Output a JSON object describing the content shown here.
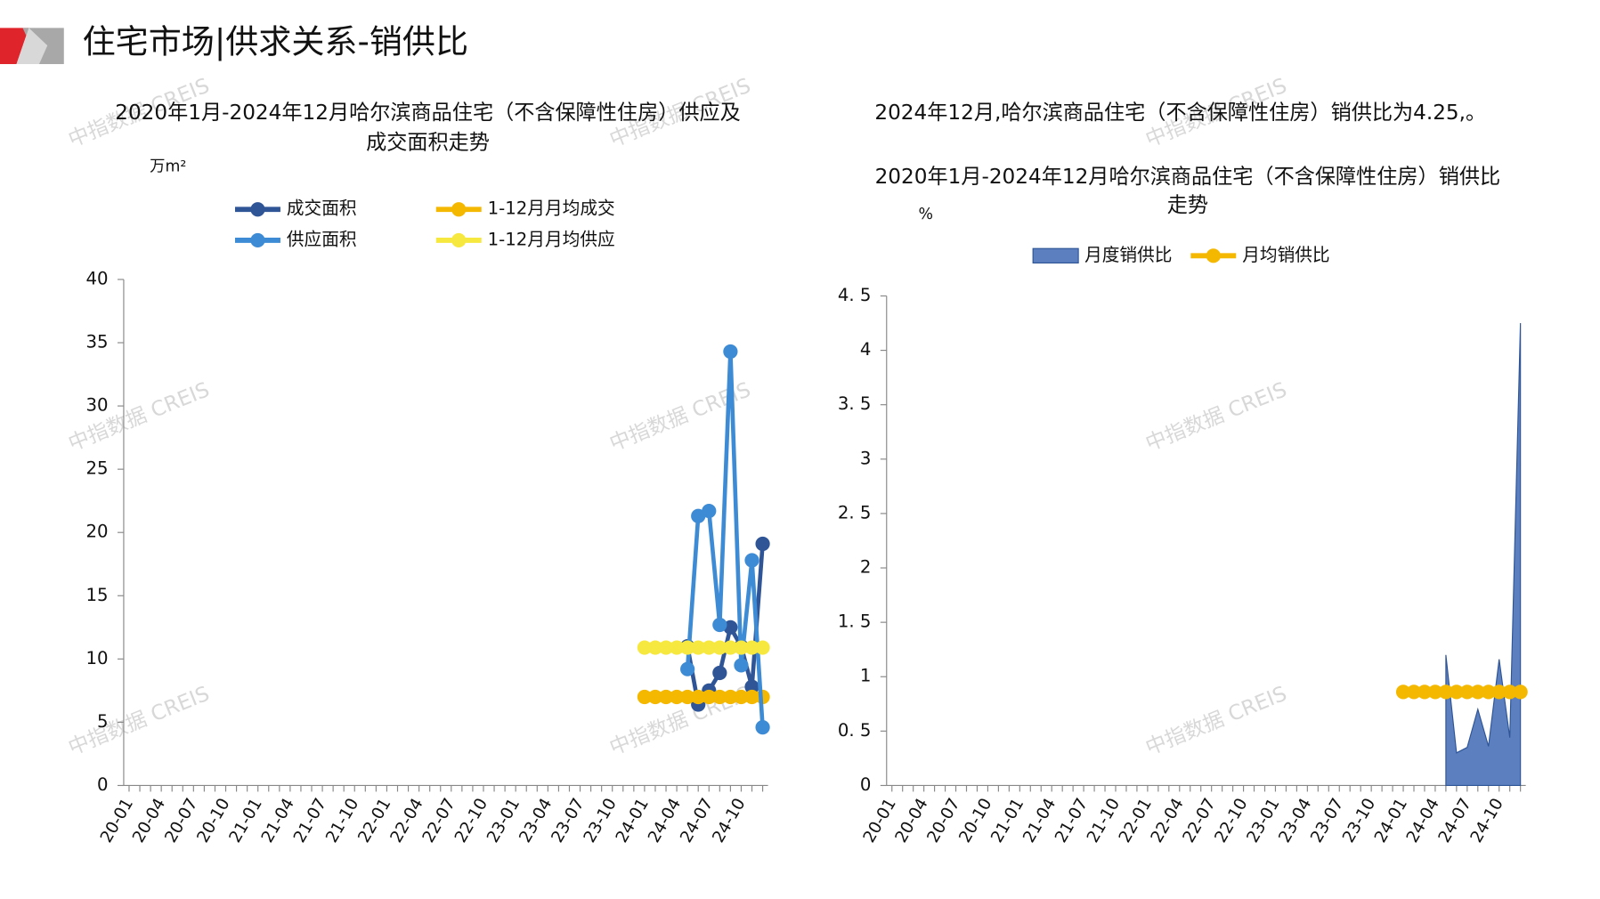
{
  "header": {
    "title": "住宅市场|供求关系-销供比"
  },
  "watermark": "中指数据 CREIS",
  "chart_data": [
    {
      "type": "line",
      "title": [
        "2020年1月-2024年12月哈尔滨商品住宅（不含保障性住房）供应及",
        "成交面积走势"
      ],
      "y_label": "万m²",
      "categories": [
        "20-01",
        null,
        null,
        "20-04",
        null,
        null,
        "20-07",
        null,
        null,
        "20-10",
        null,
        null,
        "21-01",
        null,
        null,
        "21-04",
        null,
        null,
        "21-07",
        null,
        null,
        "21-10",
        null,
        null,
        "22-01",
        null,
        null,
        "22-04",
        null,
        null,
        "22-07",
        null,
        null,
        "22-10",
        null,
        null,
        "23-01",
        null,
        null,
        "23-04",
        null,
        null,
        "23-07",
        null,
        null,
        "23-10",
        null,
        null,
        "24-01",
        null,
        null,
        "24-04",
        null,
        null,
        "24-07",
        null,
        null,
        "24-10",
        null,
        null
      ],
      "ylim": [
        0,
        40
      ],
      "yticks": [
        0,
        5,
        10,
        15,
        20,
        25,
        30,
        35,
        40
      ],
      "series": [
        {
          "name": "成交面积",
          "color": "#2f5597",
          "values": [
            null,
            null,
            null,
            null,
            null,
            null,
            null,
            null,
            null,
            null,
            null,
            null,
            null,
            null,
            null,
            null,
            null,
            null,
            null,
            null,
            null,
            null,
            null,
            null,
            null,
            null,
            null,
            null,
            null,
            null,
            null,
            null,
            null,
            null,
            null,
            null,
            null,
            null,
            null,
            null,
            null,
            null,
            null,
            null,
            null,
            null,
            null,
            null,
            null,
            null,
            null,
            null,
            11.0,
            6.4,
            7.5,
            8.9,
            12.5,
            11.0,
            7.8,
            19.1
          ]
        },
        {
          "name": "1-12月月均成交",
          "color": "#f5b800",
          "values": [
            null,
            null,
            null,
            null,
            null,
            null,
            null,
            null,
            null,
            null,
            null,
            null,
            null,
            null,
            null,
            null,
            null,
            null,
            null,
            null,
            null,
            null,
            null,
            null,
            null,
            null,
            null,
            null,
            null,
            null,
            null,
            null,
            null,
            null,
            null,
            null,
            null,
            null,
            null,
            null,
            null,
            null,
            null,
            null,
            null,
            null,
            null,
            null,
            7.0,
            7.0,
            7.0,
            7.0,
            7.0,
            7.0,
            7.0,
            7.0,
            7.0,
            7.0,
            7.0,
            7.0
          ]
        },
        {
          "name": "供应面积",
          "color": "#3d8bd4",
          "values": [
            null,
            null,
            null,
            null,
            null,
            null,
            null,
            null,
            null,
            null,
            null,
            null,
            null,
            null,
            null,
            null,
            null,
            null,
            null,
            null,
            null,
            null,
            null,
            null,
            null,
            null,
            null,
            null,
            null,
            null,
            null,
            null,
            null,
            null,
            null,
            null,
            null,
            null,
            null,
            null,
            null,
            null,
            null,
            null,
            null,
            null,
            null,
            null,
            null,
            null,
            null,
            null,
            9.2,
            21.3,
            21.7,
            12.7,
            34.3,
            9.5,
            17.8,
            4.6
          ]
        },
        {
          "name": "1-12月月均供应",
          "color": "#f7e840",
          "values": [
            null,
            null,
            null,
            null,
            null,
            null,
            null,
            null,
            null,
            null,
            null,
            null,
            null,
            null,
            null,
            null,
            null,
            null,
            null,
            null,
            null,
            null,
            null,
            null,
            null,
            null,
            null,
            null,
            null,
            null,
            null,
            null,
            null,
            null,
            null,
            null,
            null,
            null,
            null,
            null,
            null,
            null,
            null,
            null,
            null,
            null,
            null,
            null,
            10.9,
            10.9,
            10.9,
            10.9,
            10.9,
            10.9,
            10.9,
            10.9,
            10.9,
            10.9,
            10.9,
            10.9
          ]
        }
      ]
    },
    {
      "type": "area",
      "description": "2024年12月,哈尔滨商品住宅（不含保障性住房）销供比为4.25,。",
      "title": [
        "2020年1月-2024年12月哈尔滨商品住宅（不含保障性住房）销供比",
        "走势"
      ],
      "y_label": "%",
      "categories": [
        "20-01",
        null,
        null,
        "20-04",
        null,
        null,
        "20-07",
        null,
        null,
        "20-10",
        null,
        null,
        "21-01",
        null,
        null,
        "21-04",
        null,
        null,
        "21-07",
        null,
        null,
        "21-10",
        null,
        null,
        "22-01",
        null,
        null,
        "22-04",
        null,
        null,
        "22-07",
        null,
        null,
        "22-10",
        null,
        null,
        "23-01",
        null,
        null,
        "23-04",
        null,
        null,
        "23-07",
        null,
        null,
        "23-10",
        null,
        null,
        "24-01",
        null,
        null,
        "24-04",
        null,
        null,
        "24-07",
        null,
        null,
        "24-10",
        null,
        null
      ],
      "ylim": [
        0,
        4.5
      ],
      "yticks": [
        0,
        {
          "value": 0.5,
          "label": "0. 5"
        },
        1,
        {
          "value": 1.5,
          "label": "1. 5"
        },
        2,
        {
          "value": 2.5,
          "label": "2. 5"
        },
        3,
        {
          "value": 3.5,
          "label": "3. 5"
        },
        4,
        {
          "value": 4.5,
          "label": "4. 5"
        }
      ],
      "series": [
        {
          "name": "月度销供比",
          "type": "area",
          "color": "#5b7fbf",
          "values": [
            null,
            null,
            null,
            null,
            null,
            null,
            null,
            null,
            null,
            null,
            null,
            null,
            null,
            null,
            null,
            null,
            null,
            null,
            null,
            null,
            null,
            null,
            null,
            null,
            null,
            null,
            null,
            null,
            null,
            null,
            null,
            null,
            null,
            null,
            null,
            null,
            null,
            null,
            null,
            null,
            null,
            null,
            null,
            null,
            null,
            null,
            null,
            null,
            null,
            null,
            null,
            null,
            1.2,
            0.3,
            0.35,
            0.7,
            0.36,
            1.16,
            0.44,
            4.25
          ]
        },
        {
          "name": "月均销供比",
          "type": "line",
          "color": "#f5b800",
          "values": [
            null,
            null,
            null,
            null,
            null,
            null,
            null,
            null,
            null,
            null,
            null,
            null,
            null,
            null,
            null,
            null,
            null,
            null,
            null,
            null,
            null,
            null,
            null,
            null,
            null,
            null,
            null,
            null,
            null,
            null,
            null,
            null,
            null,
            null,
            null,
            null,
            null,
            null,
            null,
            null,
            null,
            null,
            null,
            null,
            null,
            null,
            null,
            null,
            0.86,
            0.86,
            0.86,
            0.86,
            0.86,
            0.86,
            0.86,
            0.86,
            0.86,
            0.86,
            0.86,
            0.86
          ]
        }
      ]
    }
  ]
}
